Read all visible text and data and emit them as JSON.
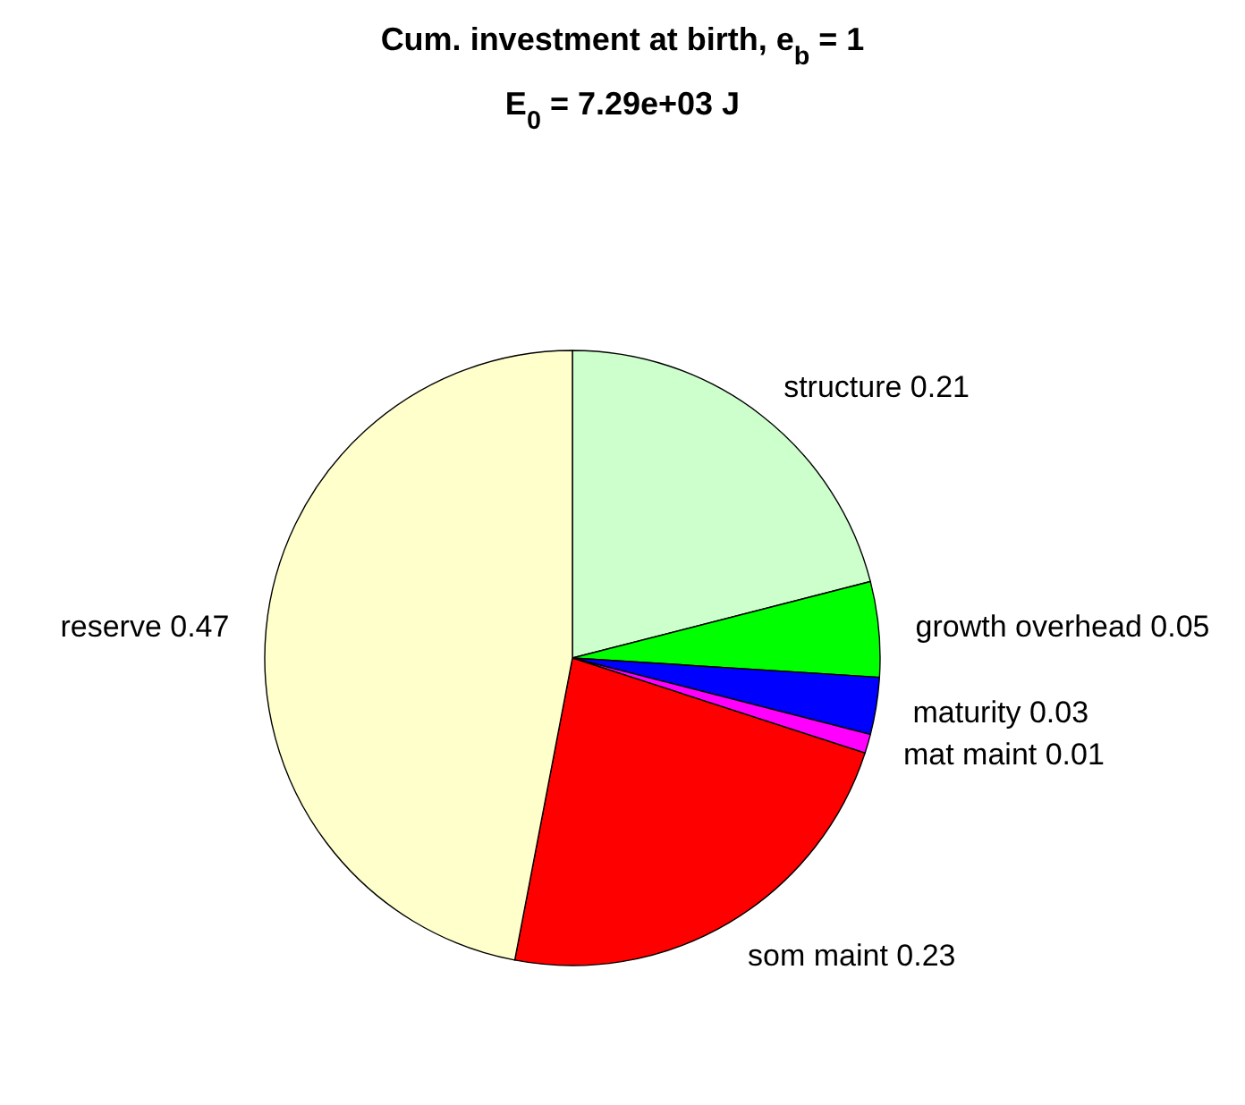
{
  "chart_data": {
    "type": "pie",
    "title": "Cum. investment at birth, e$_{b}$ = 1",
    "subtitle": "E$_{0}$ = 7.29e+03 J",
    "categories": [
      "structure 0.21",
      "growth overhead 0.05",
      "maturity 0.03",
      "mat maint 0.01",
      "som maint 0.23",
      "reserve 0.47"
    ],
    "values": [
      0.21,
      0.05,
      0.03,
      0.01,
      0.23,
      0.47
    ],
    "colors": [
      "#ccffcc",
      "#00ff00",
      "#0000ff",
      "#ff00ff",
      "#ff0000",
      "#ffffcc"
    ]
  }
}
